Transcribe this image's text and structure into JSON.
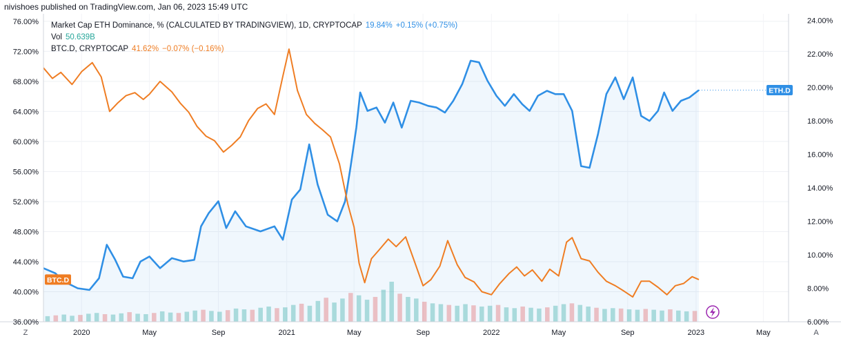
{
  "header": {
    "published": "nivishoes published on TradingView.com, Jan 06, 2023 15:49 UTC"
  },
  "legend": {
    "eth": {
      "label": "Market Cap ETH Dominance, % (CALCULATED BY TRADINGVIEW), 1D, CRYPTOCAP",
      "value": "19.84%",
      "change": "+0.15% (+0.75%)",
      "color": "#2f8fe5"
    },
    "vol": {
      "label": "Vol",
      "value": "50.639B",
      "color": "#26a69a"
    },
    "btc": {
      "label": "BTC.D, CRYPTOCAP",
      "value": "41.62%",
      "change": "−0.07% (−0.16%)",
      "color": "#ef7d23"
    }
  },
  "axis_buttons": {
    "left": "Z",
    "right": "A"
  },
  "chart_data": {
    "type": "line",
    "title": "Market Cap ETH Dominance, % (CALCULATED BY TRADINGVIEW), 1D, CRYPTOCAP",
    "x_range": [
      "2019-10-25",
      "2023-06-15"
    ],
    "x_ticks": [
      {
        "label": "2020",
        "date": "2020-01-01"
      },
      {
        "label": "May",
        "date": "2020-05-01"
      },
      {
        "label": "Sep",
        "date": "2020-09-01"
      },
      {
        "label": "2021",
        "date": "2021-01-01"
      },
      {
        "label": "May",
        "date": "2021-05-01"
      },
      {
        "label": "Sep",
        "date": "2021-09-01"
      },
      {
        "label": "2022",
        "date": "2022-01-01"
      },
      {
        "label": "May",
        "date": "2022-05-01"
      },
      {
        "label": "Sep",
        "date": "2022-09-01"
      },
      {
        "label": "2023",
        "date": "2023-01-01"
      },
      {
        "label": "May",
        "date": "2023-05-01"
      }
    ],
    "left_axis": {
      "ylim": [
        36,
        77
      ],
      "ticks": [
        "76.00%",
        "72.00%",
        "68.00%",
        "64.00%",
        "60.00%",
        "56.00%",
        "52.00%",
        "48.00%",
        "44.00%",
        "40.00%",
        "36.00%"
      ]
    },
    "right_axis": {
      "ylim": [
        6,
        24.4
      ],
      "ticks": [
        "24.00%",
        "22.00%",
        "20.00%",
        "18.00%",
        "16.00%",
        "14.00%",
        "12.00%",
        "10.00%",
        "8.00%",
        "6.00%"
      ]
    },
    "series": [
      {
        "name": "ETH.D",
        "axis": "right",
        "color": "#2f8fe5",
        "points": [
          [
            "2019-10-25",
            9.2
          ],
          [
            "2019-11-15",
            8.9
          ],
          [
            "2019-12-01",
            8.4
          ],
          [
            "2019-12-25",
            8.0
          ],
          [
            "2020-01-15",
            7.9
          ],
          [
            "2020-02-01",
            8.6
          ],
          [
            "2020-02-15",
            10.6
          ],
          [
            "2020-03-01",
            9.7
          ],
          [
            "2020-03-15",
            8.7
          ],
          [
            "2020-04-01",
            8.6
          ],
          [
            "2020-04-15",
            9.6
          ],
          [
            "2020-05-01",
            9.9
          ],
          [
            "2020-05-20",
            9.2
          ],
          [
            "2020-06-10",
            9.8
          ],
          [
            "2020-07-01",
            9.6
          ],
          [
            "2020-07-20",
            9.7
          ],
          [
            "2020-08-01",
            11.7
          ],
          [
            "2020-08-15",
            12.5
          ],
          [
            "2020-09-01",
            13.2
          ],
          [
            "2020-09-15",
            11.6
          ],
          [
            "2020-10-01",
            12.6
          ],
          [
            "2020-10-20",
            11.7
          ],
          [
            "2020-11-15",
            11.4
          ],
          [
            "2020-12-10",
            11.7
          ],
          [
            "2020-12-25",
            10.9
          ],
          [
            "2021-01-10",
            13.3
          ],
          [
            "2021-01-25",
            13.9
          ],
          [
            "2021-02-10",
            16.6
          ],
          [
            "2021-02-25",
            14.2
          ],
          [
            "2021-03-15",
            12.4
          ],
          [
            "2021-04-01",
            12.0
          ],
          [
            "2021-04-15",
            13.2
          ],
          [
            "2021-04-25",
            15.3
          ],
          [
            "2021-05-05",
            17.6
          ],
          [
            "2021-05-12",
            19.7
          ],
          [
            "2021-05-25",
            18.6
          ],
          [
            "2021-06-10",
            18.8
          ],
          [
            "2021-06-25",
            17.9
          ],
          [
            "2021-07-10",
            19.1
          ],
          [
            "2021-07-25",
            17.6
          ],
          [
            "2021-08-10",
            19.2
          ],
          [
            "2021-08-25",
            19.1
          ],
          [
            "2021-09-10",
            18.9
          ],
          [
            "2021-09-25",
            18.8
          ],
          [
            "2021-10-10",
            18.5
          ],
          [
            "2021-10-25",
            19.2
          ],
          [
            "2021-11-10",
            20.2
          ],
          [
            "2021-11-25",
            21.6
          ],
          [
            "2021-12-10",
            21.5
          ],
          [
            "2021-12-25",
            20.4
          ],
          [
            "2022-01-10",
            19.5
          ],
          [
            "2022-01-25",
            18.9
          ],
          [
            "2022-02-10",
            19.6
          ],
          [
            "2022-02-25",
            19.0
          ],
          [
            "2022-03-10",
            18.6
          ],
          [
            "2022-03-25",
            19.5
          ],
          [
            "2022-04-10",
            19.8
          ],
          [
            "2022-04-25",
            19.6
          ],
          [
            "2022-05-10",
            19.6
          ],
          [
            "2022-05-25",
            18.6
          ],
          [
            "2022-06-10",
            15.3
          ],
          [
            "2022-06-25",
            15.2
          ],
          [
            "2022-07-10",
            17.2
          ],
          [
            "2022-07-25",
            19.6
          ],
          [
            "2022-08-10",
            20.6
          ],
          [
            "2022-08-25",
            19.3
          ],
          [
            "2022-09-10",
            20.6
          ],
          [
            "2022-09-25",
            18.3
          ],
          [
            "2022-10-10",
            18.0
          ],
          [
            "2022-10-25",
            18.6
          ],
          [
            "2022-11-05",
            19.7
          ],
          [
            "2022-11-20",
            18.6
          ],
          [
            "2022-12-05",
            19.2
          ],
          [
            "2022-12-20",
            19.4
          ],
          [
            "2023-01-06",
            19.84
          ]
        ]
      },
      {
        "name": "BTC.D",
        "axis": "left",
        "color": "#ef7d23",
        "points": [
          [
            "2019-10-25",
            69.8
          ],
          [
            "2019-11-10",
            68.4
          ],
          [
            "2019-11-25",
            69.2
          ],
          [
            "2019-12-15",
            67.6
          ],
          [
            "2020-01-01",
            69.3
          ],
          [
            "2020-01-20",
            70.5
          ],
          [
            "2020-02-05",
            68.6
          ],
          [
            "2020-02-20",
            64.0
          ],
          [
            "2020-03-05",
            65.1
          ],
          [
            "2020-03-20",
            66.1
          ],
          [
            "2020-04-05",
            66.5
          ],
          [
            "2020-04-20",
            65.6
          ],
          [
            "2020-05-01",
            66.3
          ],
          [
            "2020-05-20",
            68.0
          ],
          [
            "2020-06-10",
            66.6
          ],
          [
            "2020-06-25",
            65.1
          ],
          [
            "2020-07-10",
            63.9
          ],
          [
            "2020-07-25",
            62.0
          ],
          [
            "2020-08-10",
            60.7
          ],
          [
            "2020-08-25",
            60.1
          ],
          [
            "2020-09-10",
            58.6
          ],
          [
            "2020-09-25",
            59.5
          ],
          [
            "2020-10-10",
            60.6
          ],
          [
            "2020-10-25",
            62.8
          ],
          [
            "2020-11-10",
            64.4
          ],
          [
            "2020-11-25",
            65.0
          ],
          [
            "2020-12-10",
            63.6
          ],
          [
            "2020-12-25",
            68.7
          ],
          [
            "2021-01-05",
            72.3
          ],
          [
            "2021-01-20",
            66.8
          ],
          [
            "2021-02-05",
            63.6
          ],
          [
            "2021-02-20",
            62.4
          ],
          [
            "2021-03-05",
            61.6
          ],
          [
            "2021-03-20",
            60.6
          ],
          [
            "2021-04-05",
            57.0
          ],
          [
            "2021-04-20",
            51.6
          ],
          [
            "2021-05-01",
            48.6
          ],
          [
            "2021-05-10",
            43.8
          ],
          [
            "2021-05-20",
            41.2
          ],
          [
            "2021-06-01",
            44.4
          ],
          [
            "2021-06-15",
            45.6
          ],
          [
            "2021-07-01",
            47.0
          ],
          [
            "2021-07-15",
            46.0
          ],
          [
            "2021-08-01",
            47.3
          ],
          [
            "2021-08-15",
            44.4
          ],
          [
            "2021-09-01",
            40.8
          ],
          [
            "2021-09-15",
            41.6
          ],
          [
            "2021-10-01",
            43.4
          ],
          [
            "2021-10-15",
            46.8
          ],
          [
            "2021-11-01",
            43.6
          ],
          [
            "2021-11-15",
            41.9
          ],
          [
            "2021-12-01",
            41.3
          ],
          [
            "2021-12-15",
            40.0
          ],
          [
            "2022-01-01",
            39.6
          ],
          [
            "2022-01-15",
            41.0
          ],
          [
            "2022-02-01",
            42.4
          ],
          [
            "2022-02-15",
            43.3
          ],
          [
            "2022-03-01",
            42.1
          ],
          [
            "2022-03-15",
            42.9
          ],
          [
            "2022-04-01",
            41.4
          ],
          [
            "2022-04-15",
            43.0
          ],
          [
            "2022-05-01",
            42.1
          ],
          [
            "2022-05-15",
            46.6
          ],
          [
            "2022-05-25",
            47.2
          ],
          [
            "2022-06-10",
            44.4
          ],
          [
            "2022-06-25",
            44.1
          ],
          [
            "2022-07-10",
            42.6
          ],
          [
            "2022-07-25",
            41.4
          ],
          [
            "2022-08-10",
            40.8
          ],
          [
            "2022-08-25",
            40.1
          ],
          [
            "2022-09-10",
            39.3
          ],
          [
            "2022-09-25",
            41.4
          ],
          [
            "2022-10-10",
            41.4
          ],
          [
            "2022-10-25",
            40.6
          ],
          [
            "2022-11-10",
            39.6
          ],
          [
            "2022-11-25",
            40.8
          ],
          [
            "2022-12-10",
            41.1
          ],
          [
            "2022-12-25",
            42.0
          ],
          [
            "2023-01-06",
            41.62
          ]
        ]
      },
      {
        "name": "Vol",
        "type": "bar",
        "color_up": "#26a69a",
        "color_down": "#ef5350",
        "note_units": "relative daily volume, 0-1 of peak",
        "values": [
          0.14,
          0.16,
          0.18,
          0.15,
          0.17,
          0.2,
          0.22,
          0.19,
          0.18,
          0.21,
          0.24,
          0.2,
          0.19,
          0.22,
          0.26,
          0.23,
          0.22,
          0.25,
          0.28,
          0.3,
          0.27,
          0.25,
          0.29,
          0.33,
          0.31,
          0.3,
          0.35,
          0.38,
          0.34,
          0.36,
          0.42,
          0.45,
          0.4,
          0.52,
          0.6,
          0.48,
          0.58,
          0.72,
          0.66,
          0.55,
          0.62,
          0.8,
          1.0,
          0.7,
          0.62,
          0.58,
          0.5,
          0.46,
          0.44,
          0.42,
          0.4,
          0.44,
          0.41,
          0.38,
          0.4,
          0.42,
          0.36,
          0.34,
          0.38,
          0.35,
          0.33,
          0.36,
          0.4,
          0.44,
          0.46,
          0.42,
          0.38,
          0.35,
          0.32,
          0.34,
          0.33,
          0.31,
          0.3,
          0.32,
          0.3,
          0.28,
          0.31,
          0.28,
          0.26,
          0.27
        ]
      }
    ],
    "tags": [
      {
        "name": "ETH.D",
        "axis": "right",
        "value": 19.84,
        "color": "#2f8fe5"
      },
      {
        "name": "BTC.D",
        "axis": "left",
        "value": 41.62,
        "color": "#ef7d23"
      }
    ]
  }
}
